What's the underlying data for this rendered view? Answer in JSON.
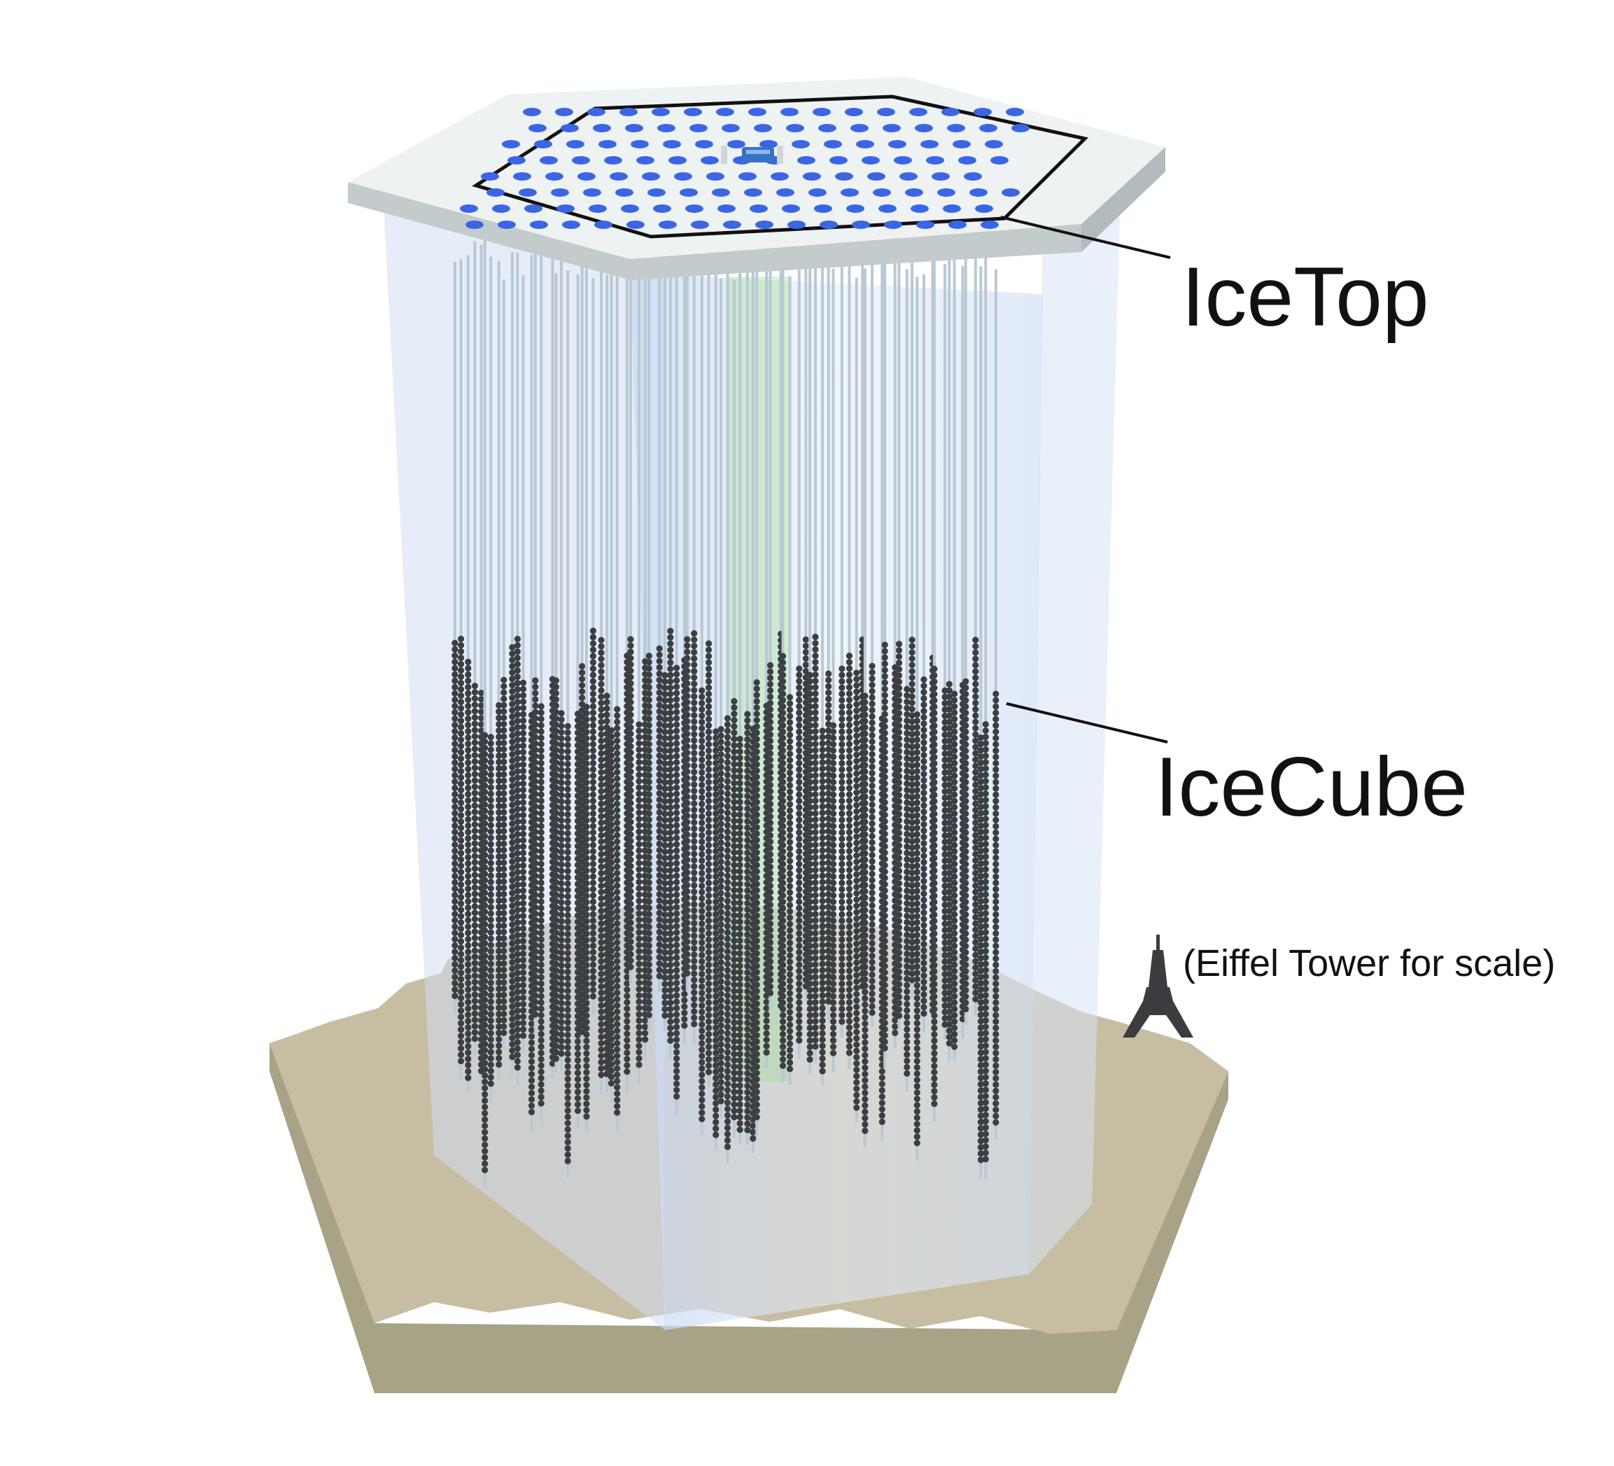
{
  "labels": {
    "icetop": "IceTop",
    "icecube": "IceCube",
    "eiffel": "(Eiffel Tower for scale)"
  },
  "colors": {
    "ground_top": "#c7bda3",
    "ground_side": "#a8a287",
    "ice_volume": "#dde7f7",
    "icetop_surface": "#eef2f2",
    "tank": "#3a66e6",
    "string": "#b9c9d3",
    "dom": "#3b3f42",
    "event": "#9be08a",
    "leader_line": "#111111"
  },
  "icons": {
    "surface": "icetop-surface-icon",
    "eiffel": "eiffel-tower-icon",
    "lab": "icecube-lab-icon"
  }
}
